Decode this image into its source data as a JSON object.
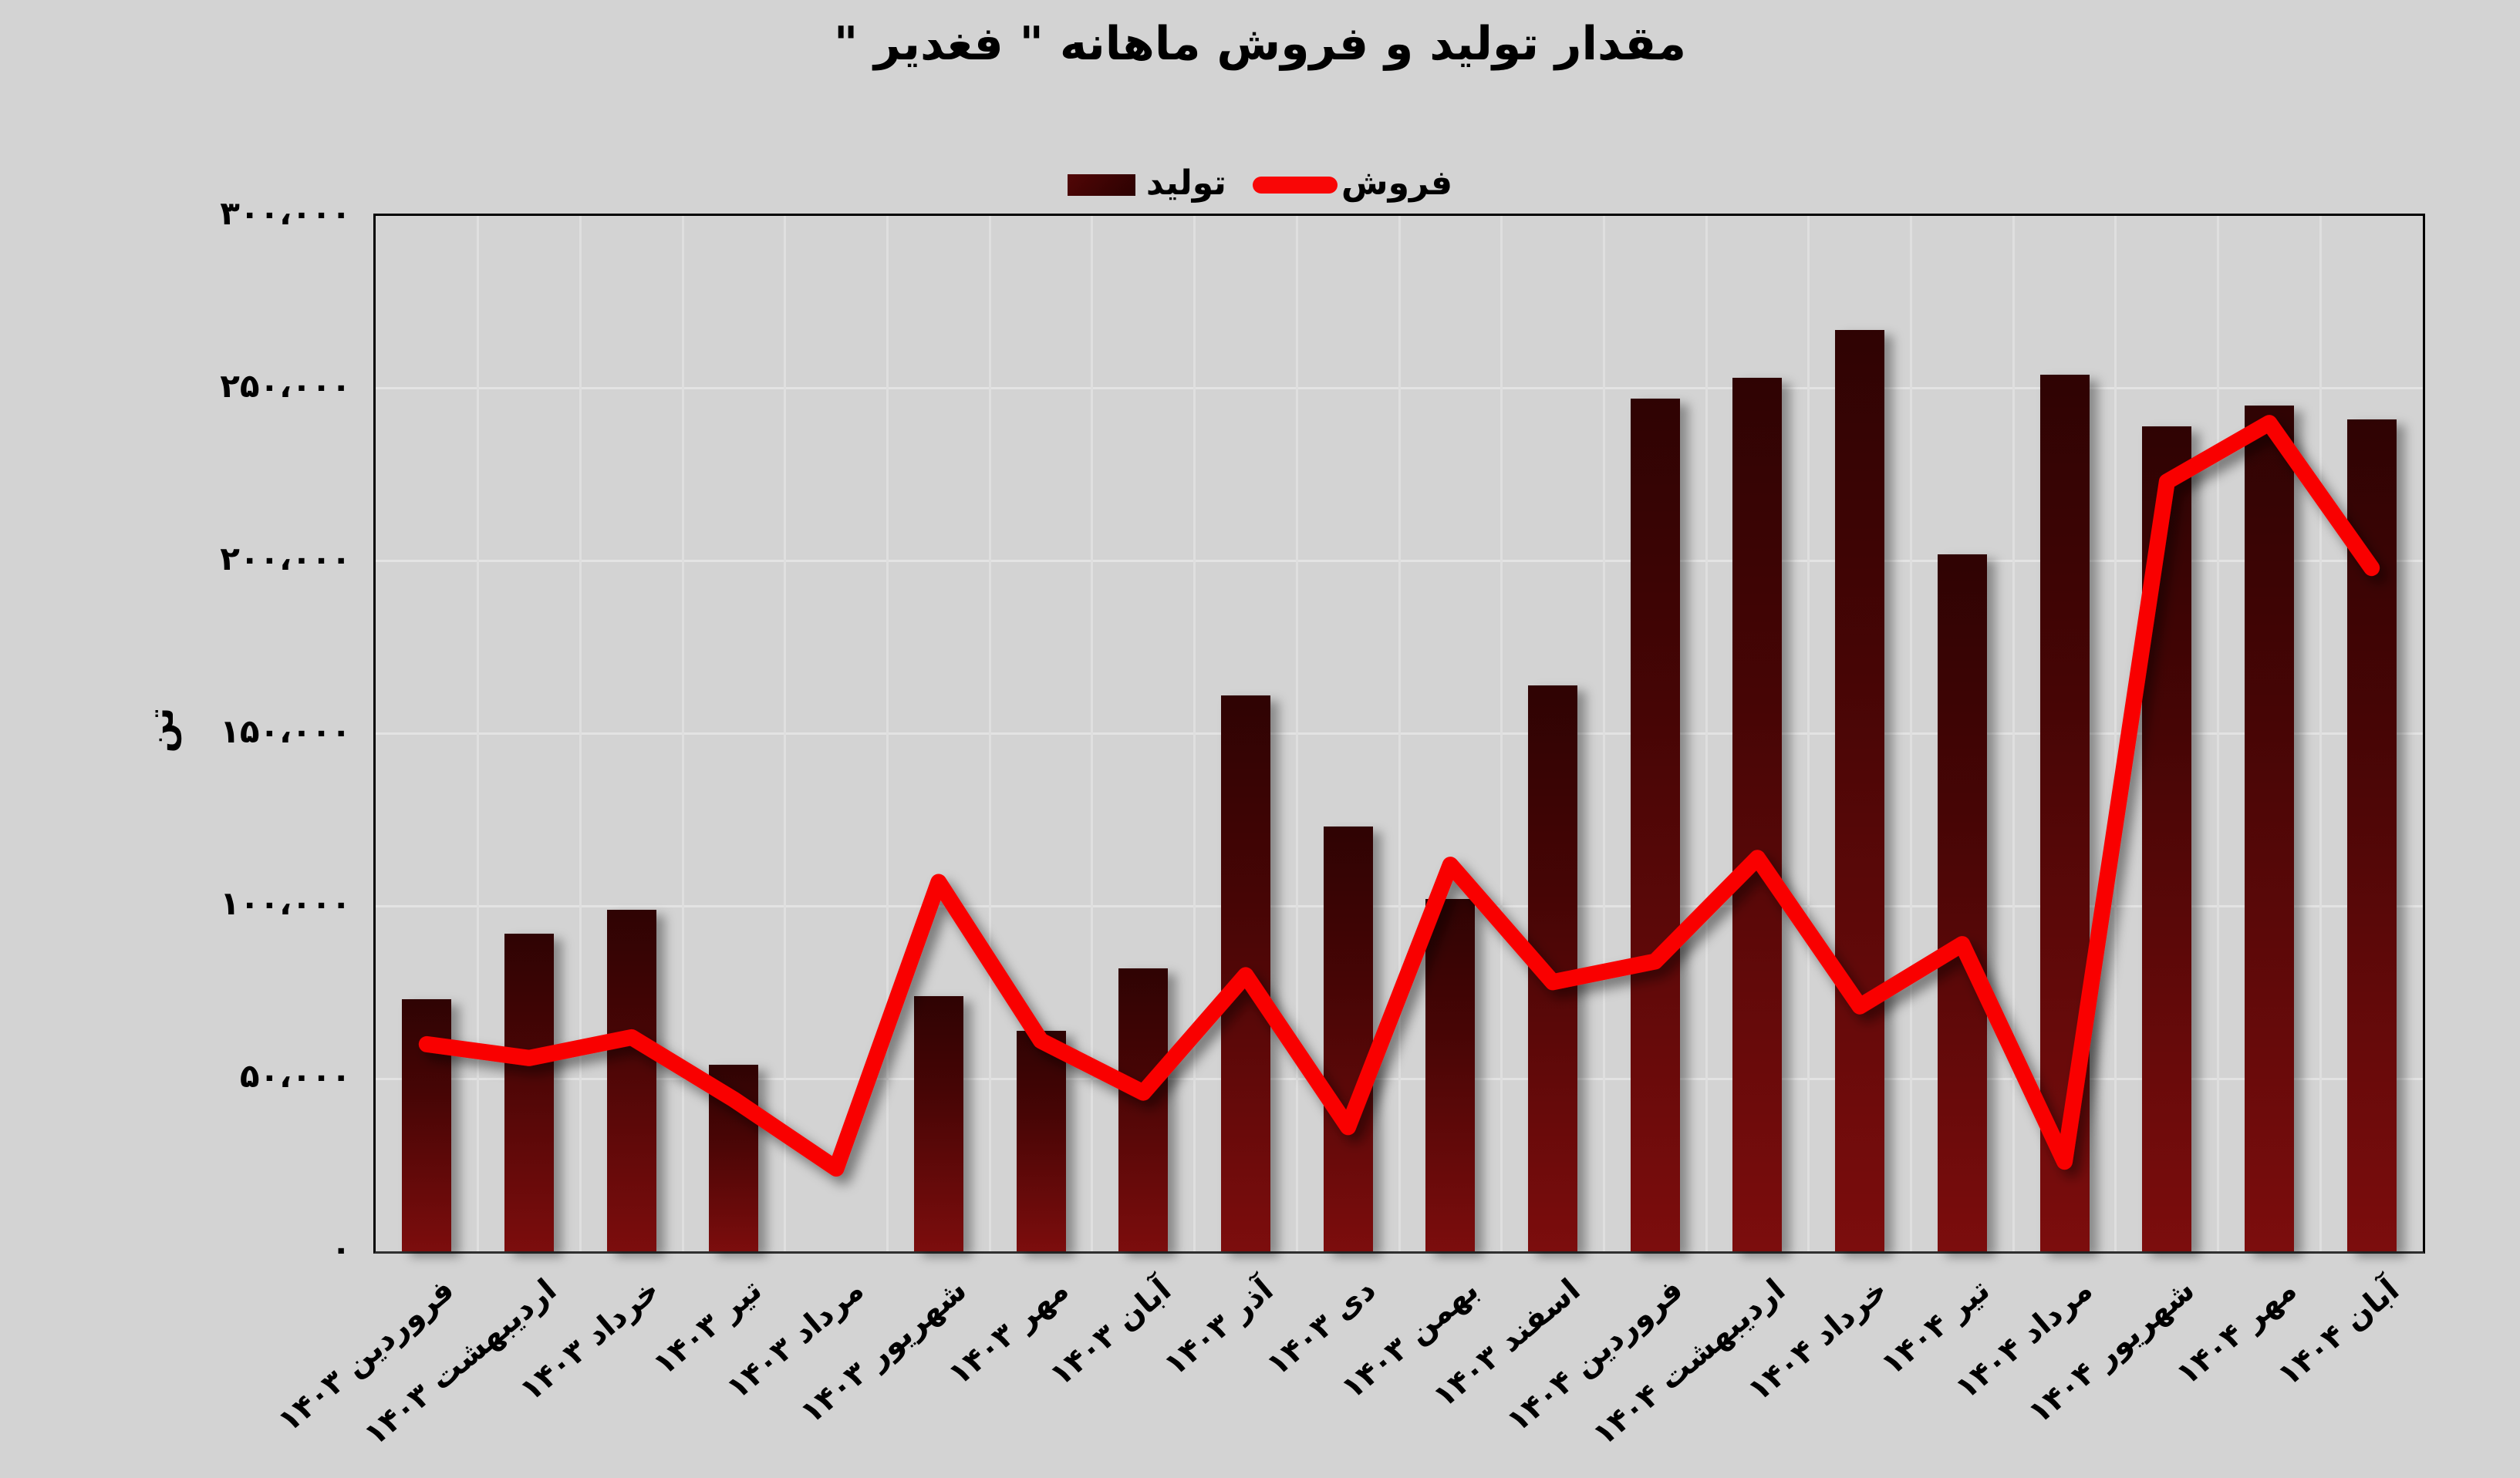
{
  "title": "مقدار تولید و فروش ماهانه \" فغدیر \"",
  "legend": {
    "production_label": "تولید",
    "sales_label": "فروش"
  },
  "y_axis": {
    "title": "تن",
    "tick_labels": [
      "۰",
      "۵۰،۰۰۰",
      "۱۰۰،۰۰۰",
      "۱۵۰،۰۰۰",
      "۲۰۰،۰۰۰",
      "۲۵۰،۰۰۰",
      "۳۰۰،۰۰۰"
    ],
    "tick_values": [
      0,
      50000,
      100000,
      150000,
      200000,
      250000,
      300000
    ]
  },
  "colors": {
    "background": "#d3d3d3",
    "gridline": "#e3e3e3",
    "plot_border": "#000000",
    "bar_dark": "#2f0303",
    "bar_light": "#7c0d0d",
    "line_red": "#f90606",
    "legend_square": "#3a0303"
  },
  "chart_data": {
    "type": "bar+line",
    "title": "مقدار تولید و فروش ماهانه \" فغدیر \"",
    "ylabel": "تن",
    "ylim": [
      0,
      300000
    ],
    "y_tick_step": 50000,
    "grid": true,
    "legend_position": "top-center",
    "categories": [
      "فروردین ۱۴۰۳",
      "اردیبهشت ۱۴۰۳",
      "خرداد ۱۴۰۳",
      "تیر ۱۴۰۳",
      "مرداد ۱۴۰۳",
      "شهریور ۱۴۰۳",
      "مهر ۱۴۰۳",
      "آبان ۱۴۰۳",
      "آذر ۱۴۰۳",
      "دی ۱۴۰۳",
      "بهمن ۱۴۰۳",
      "اسفند ۱۴۰۳",
      "فروردین ۱۴۰۴",
      "اردیبهشت ۱۴۰۴",
      "خرداد ۱۴۰۴",
      "تیر ۱۴۰۴",
      "مرداد ۱۴۰۴",
      "شهریور ۱۴۰۴",
      "مهر ۱۴۰۴",
      "آبان ۱۴۰۴"
    ],
    "series": [
      {
        "name": "تولید",
        "type": "bar",
        "values": [
          73000,
          92000,
          99000,
          54000,
          0,
          74000,
          64000,
          82000,
          161000,
          123000,
          102000,
          164000,
          247000,
          253000,
          267000,
          202000,
          254000,
          239000,
          245000,
          241000
        ]
      },
      {
        "name": "فروش",
        "type": "line",
        "values": [
          60000,
          56000,
          62000,
          44000,
          24000,
          107000,
          61000,
          46000,
          80000,
          36000,
          112000,
          78000,
          84000,
          114000,
          71000,
          89000,
          26000,
          223000,
          240000,
          198000
        ]
      }
    ]
  }
}
